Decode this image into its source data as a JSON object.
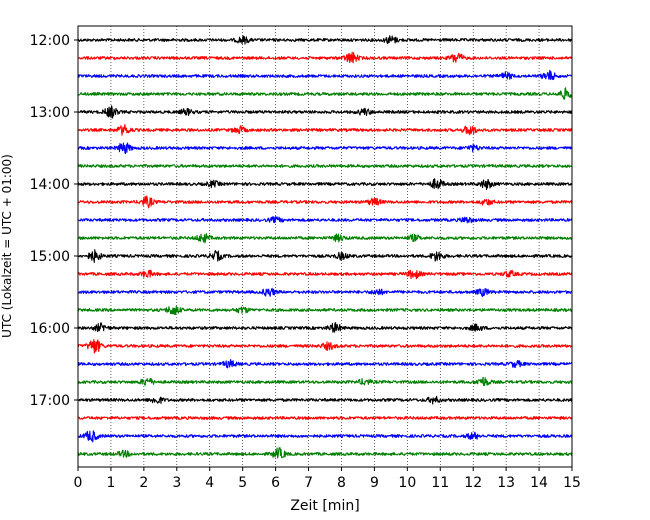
{
  "chart_data": {
    "type": "line",
    "title": "",
    "xlabel": "Zeit  [min]",
    "ylabel": "UTC (Lokalzeit = UTC + 01:00)",
    "xlim": [
      0,
      15
    ],
    "x_ticks": [
      "0",
      "1",
      "2",
      "3",
      "4",
      "5",
      "6",
      "7",
      "8",
      "9",
      "10",
      "11",
      "12",
      "13",
      "14",
      "15"
    ],
    "y_ticks": [
      "12:00",
      "13:00",
      "14:00",
      "15:00",
      "16:00",
      "17:00"
    ],
    "grid": "vertical dotted lines at each minute",
    "trace_interval_minutes": 15,
    "trace_colors": [
      "#000000",
      "#ff0000",
      "#0000ff",
      "#008000"
    ],
    "series": [
      {
        "start": "12:00",
        "color": "#000000",
        "bursts": [
          [
            5.0,
            1.0
          ],
          [
            9.5,
            1.1
          ]
        ]
      },
      {
        "start": "12:15",
        "color": "#ff0000",
        "bursts": [
          [
            8.3,
            1.6
          ],
          [
            11.5,
            1.5
          ]
        ]
      },
      {
        "start": "12:30",
        "color": "#0000ff",
        "bursts": [
          [
            13.0,
            0.9
          ],
          [
            14.3,
            1.4
          ]
        ]
      },
      {
        "start": "12:45",
        "color": "#008000",
        "bursts": [
          [
            14.8,
            1.5
          ]
        ]
      },
      {
        "start": "13:00",
        "color": "#000000",
        "bursts": [
          [
            1.0,
            1.6
          ],
          [
            3.3,
            0.8
          ],
          [
            8.7,
            0.9
          ]
        ]
      },
      {
        "start": "13:15",
        "color": "#ff0000",
        "bursts": [
          [
            1.4,
            1.4
          ],
          [
            4.9,
            1.0
          ],
          [
            11.9,
            1.4
          ]
        ]
      },
      {
        "start": "13:30",
        "color": "#0000ff",
        "bursts": [
          [
            1.4,
            1.6
          ],
          [
            12.0,
            0.8
          ]
        ]
      },
      {
        "start": "13:45",
        "color": "#008000",
        "bursts": []
      },
      {
        "start": "14:00",
        "color": "#000000",
        "bursts": [
          [
            10.9,
            1.5
          ],
          [
            12.4,
            1.3
          ],
          [
            4.1,
            0.8
          ]
        ]
      },
      {
        "start": "14:15",
        "color": "#ff0000",
        "bursts": [
          [
            2.1,
            1.5
          ],
          [
            9.0,
            1.0
          ],
          [
            12.4,
            0.8
          ]
        ]
      },
      {
        "start": "14:30",
        "color": "#0000ff",
        "bursts": [
          [
            6.0,
            0.7
          ],
          [
            11.8,
            0.8
          ]
        ]
      },
      {
        "start": "14:45",
        "color": "#008000",
        "bursts": [
          [
            3.8,
            1.3
          ],
          [
            7.9,
            0.9
          ],
          [
            10.2,
            0.8
          ]
        ]
      },
      {
        "start": "15:00",
        "color": "#000000",
        "bursts": [
          [
            0.5,
            1.6
          ],
          [
            4.2,
            1.3
          ],
          [
            10.9,
            1.4
          ],
          [
            8.0,
            0.9
          ]
        ]
      },
      {
        "start": "15:15",
        "color": "#ff0000",
        "bursts": [
          [
            2.1,
            1.0
          ],
          [
            10.2,
            1.3
          ],
          [
            13.1,
            0.8
          ]
        ]
      },
      {
        "start": "15:30",
        "color": "#0000ff",
        "bursts": [
          [
            5.8,
            1.2
          ],
          [
            12.3,
            1.0
          ],
          [
            9.1,
            0.8
          ]
        ]
      },
      {
        "start": "15:45",
        "color": "#008000",
        "bursts": [
          [
            2.9,
            1.5
          ],
          [
            5.0,
            0.8
          ]
        ]
      },
      {
        "start": "16:00",
        "color": "#000000",
        "bursts": [
          [
            0.7,
            1.2
          ],
          [
            7.8,
            1.3
          ],
          [
            12.1,
            0.9
          ]
        ]
      },
      {
        "start": "16:15",
        "color": "#ff0000",
        "bursts": [
          [
            0.5,
            2.2
          ],
          [
            7.6,
            1.0
          ]
        ]
      },
      {
        "start": "16:30",
        "color": "#0000ff",
        "bursts": [
          [
            4.6,
            1.0
          ],
          [
            13.3,
            0.8
          ]
        ]
      },
      {
        "start": "16:45",
        "color": "#008000",
        "bursts": [
          [
            2.1,
            1.1
          ],
          [
            12.3,
            1.3
          ],
          [
            8.7,
            0.8
          ]
        ]
      },
      {
        "start": "17:00",
        "color": "#000000",
        "bursts": [
          [
            2.4,
            1.0
          ],
          [
            10.8,
            0.9
          ]
        ]
      },
      {
        "start": "17:15",
        "color": "#ff0000",
        "bursts": []
      },
      {
        "start": "17:30",
        "color": "#0000ff",
        "bursts": [
          [
            0.4,
            1.6
          ],
          [
            12.0,
            0.9
          ]
        ]
      },
      {
        "start": "17:45",
        "color": "#008000",
        "bursts": [
          [
            6.1,
            1.6
          ],
          [
            1.4,
            0.8
          ]
        ]
      }
    ]
  }
}
